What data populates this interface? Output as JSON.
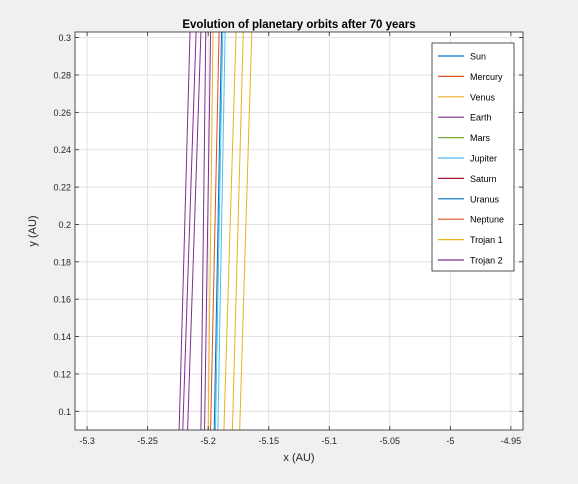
{
  "chart_data": {
    "type": "line",
    "title": "Evolution of planetary orbits after 70 years",
    "xlabel": "x (AU)",
    "ylabel": "y (AU)",
    "xlim": [
      -5.31,
      -4.94
    ],
    "ylim": [
      0.09,
      0.303
    ],
    "xticks": [
      -5.3,
      -5.25,
      -5.2,
      -5.15,
      -5.1,
      -5.05,
      -5,
      -4.95
    ],
    "yticks": [
      0.1,
      0.12,
      0.14,
      0.16,
      0.18,
      0.2,
      0.22,
      0.24,
      0.26,
      0.28,
      0.3
    ],
    "xtick_labels": [
      "-5.3",
      "-5.25",
      "-5.2",
      "-5.15",
      "-5.1",
      "-5.05",
      "-5",
      "-4.95"
    ],
    "ytick_labels": [
      "0.1",
      "0.12",
      "0.14",
      "0.16",
      "0.18",
      "0.2",
      "0.22",
      "0.24",
      "0.26",
      "0.28",
      "0.3"
    ],
    "grid": true,
    "legend_position": "top-right",
    "series": [
      {
        "name": "Sun",
        "color": "#0072bd",
        "lines": []
      },
      {
        "name": "Mercury",
        "color": "#d95319",
        "lines": []
      },
      {
        "name": "Venus",
        "color": "#edb120",
        "lines": []
      },
      {
        "name": "Earth",
        "color": "#7e2f8e",
        "lines": []
      },
      {
        "name": "Mars",
        "color": "#77ac30",
        "lines": []
      },
      {
        "name": "Jupiter",
        "color": "#4dbeee",
        "lines": [
          [
            [
              -5.192,
              0.09
            ],
            [
              -5.186,
              0.303
            ]
          ],
          [
            [
              -5.194,
              0.09
            ],
            [
              -5.188,
              0.303
            ]
          ]
        ]
      },
      {
        "name": "Saturn",
        "color": "#a2142f",
        "lines": []
      },
      {
        "name": "Uranus",
        "color": "#0072bd",
        "lines": [
          [
            [
              -5.195,
              0.09
            ],
            [
              -5.189,
              0.303
            ]
          ]
        ]
      },
      {
        "name": "Neptune",
        "color": "#d95319",
        "lines": [
          [
            [
              -5.198,
              0.09
            ],
            [
              -5.191,
              0.303
            ]
          ]
        ]
      },
      {
        "name": "Trojan 1",
        "color": "#edb120",
        "lines": [
          [
            [
              -5.2,
              0.09
            ],
            [
              -5.196,
              0.303
            ]
          ],
          [
            [
              -5.187,
              0.09
            ],
            [
              -5.177,
              0.303
            ]
          ],
          [
            [
              -5.18,
              0.09
            ],
            [
              -5.171,
              0.303
            ]
          ],
          [
            [
              -5.174,
              0.09
            ],
            [
              -5.164,
              0.303
            ]
          ]
        ]
      },
      {
        "name": "Trojan 2",
        "color": "#7e2f8e",
        "lines": [
          [
            [
              -5.224,
              0.09
            ],
            [
              -5.215,
              0.303
            ]
          ],
          [
            [
              -5.221,
              0.09
            ],
            [
              -5.21,
              0.303
            ]
          ],
          [
            [
              -5.217,
              0.09
            ],
            [
              -5.206,
              0.303
            ]
          ],
          [
            [
              -5.206,
              0.09
            ],
            [
              -5.202,
              0.303
            ]
          ],
          [
            [
              -5.203,
              0.09
            ],
            [
              -5.198,
              0.303
            ]
          ]
        ]
      }
    ]
  }
}
